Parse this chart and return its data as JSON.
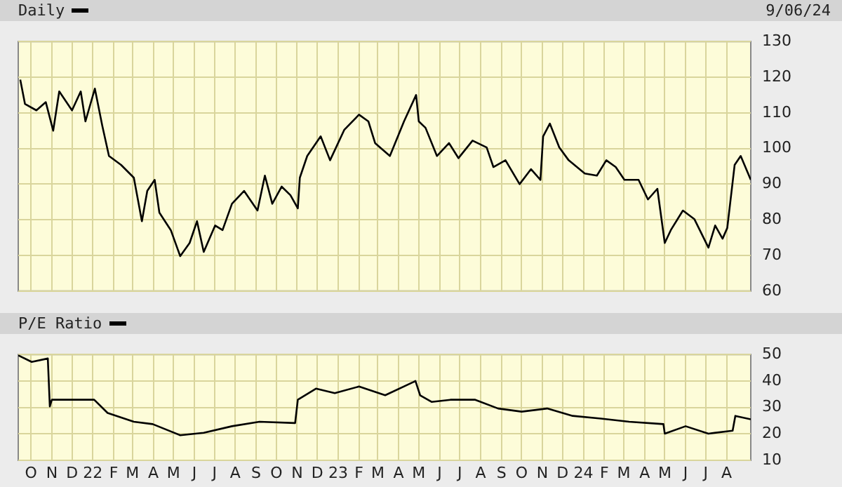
{
  "chart_data": [
    {
      "type": "line",
      "title": "Daily",
      "annotations": [
        "9/06/24"
      ],
      "color": "#000000",
      "grid": true,
      "tick_labels": "y",
      "x": [
        "2021-09-15",
        "2021-09-22",
        "2021-10-09",
        "2021-10-23",
        "2021-11-03",
        "2021-11-12",
        "2021-12-01",
        "2021-12-14",
        "2021-12-21",
        "2022-01-04",
        "2022-01-15",
        "2022-01-25",
        "2022-02-12",
        "2022-03-03",
        "2022-03-09",
        "2022-03-15",
        "2022-03-23",
        "2022-04-03",
        "2022-04-10",
        "2022-04-27",
        "2022-05-11",
        "2022-05-25",
        "2022-06-05",
        "2022-06-15",
        "2022-07-02",
        "2022-07-13",
        "2022-07-27",
        "2022-08-14",
        "2022-09-03",
        "2022-09-14",
        "2022-09-25",
        "2022-10-09",
        "2022-10-22",
        "2022-11-02",
        "2022-11-05",
        "2022-11-16",
        "2022-12-06",
        "2022-12-20",
        "2023-01-10",
        "2023-02-01",
        "2023-02-15",
        "2023-02-25",
        "2023-03-19",
        "2023-04-09",
        "2023-04-27",
        "2023-05-01",
        "2023-05-11",
        "2023-05-28",
        "2023-06-15",
        "2023-06-29",
        "2023-07-20",
        "2023-08-10",
        "2023-08-20",
        "2023-09-07",
        "2023-09-28",
        "2023-10-15",
        "2023-10-29",
        "2023-11-02",
        "2023-11-12",
        "2023-11-26",
        "2023-12-10",
        "2024-01-03",
        "2024-01-21",
        "2024-02-04",
        "2024-02-18",
        "2024-03-02",
        "2024-03-23",
        "2024-04-06",
        "2024-04-20",
        "2024-05-01",
        "2024-05-10",
        "2024-05-28",
        "2024-06-14",
        "2024-07-05",
        "2024-07-15",
        "2024-07-26",
        "2024-08-02",
        "2024-08-13",
        "2024-08-22",
        "2024-09-06"
      ],
      "values": [
        119.3,
        112.5,
        110.7,
        113,
        105,
        116,
        110.7,
        116,
        107.6,
        116.8,
        106.4,
        97.9,
        95.4,
        91.8,
        85.7,
        79.6,
        88.1,
        91.2,
        82,
        77.1,
        69.8,
        73.5,
        79.6,
        71,
        78.4,
        77.1,
        84.5,
        88.1,
        82.6,
        92.4,
        84.5,
        89.3,
        86.9,
        83.2,
        91.8,
        97.9,
        103.4,
        96.7,
        105.2,
        109.5,
        107.6,
        101.5,
        97.9,
        107.6,
        115,
        107.6,
        105.8,
        97.9,
        101.5,
        97.3,
        102.2,
        100.3,
        94.8,
        96.7,
        90,
        94.2,
        91.2,
        103.4,
        107,
        100.3,
        96.7,
        93,
        92.4,
        96.7,
        94.8,
        91.2,
        91.2,
        85.7,
        88.7,
        73.5,
        77.1,
        82.6,
        80.2,
        72.2,
        78.4,
        74.7,
        77.7,
        95.4,
        97.9,
        91.2
      ],
      "xlim": [
        "2021-09-12",
        "2024-09-06"
      ],
      "xticks": [
        {
          "value": "2021-10-01",
          "label": null
        },
        {
          "value": "2021-11-01",
          "label": null
        },
        {
          "value": "2021-12-01",
          "label": null
        },
        {
          "value": "2022-01-01",
          "label": null
        },
        {
          "value": "2022-02-01",
          "label": null
        },
        {
          "value": "2022-03-01",
          "label": null
        },
        {
          "value": "2022-04-01",
          "label": null
        },
        {
          "value": "2022-05-01",
          "label": null
        },
        {
          "value": "2022-06-01",
          "label": null
        },
        {
          "value": "2022-07-01",
          "label": null
        },
        {
          "value": "2022-08-01",
          "label": null
        },
        {
          "value": "2022-09-01",
          "label": null
        },
        {
          "value": "2022-10-01",
          "label": null
        },
        {
          "value": "2022-11-01",
          "label": null
        },
        {
          "value": "2022-12-01",
          "label": null
        },
        {
          "value": "2023-01-01",
          "label": null
        },
        {
          "value": "2023-02-01",
          "label": null
        },
        {
          "value": "2023-03-01",
          "label": null
        },
        {
          "value": "2023-04-01",
          "label": null
        },
        {
          "value": "2023-05-01",
          "label": null
        },
        {
          "value": "2023-06-01",
          "label": null
        },
        {
          "value": "2023-07-01",
          "label": null
        },
        {
          "value": "2023-08-01",
          "label": null
        },
        {
          "value": "2023-09-01",
          "label": null
        },
        {
          "value": "2023-10-01",
          "label": null
        },
        {
          "value": "2023-11-01",
          "label": null
        },
        {
          "value": "2023-12-01",
          "label": null
        },
        {
          "value": "2024-01-01",
          "label": null
        },
        {
          "value": "2024-02-01",
          "label": null
        },
        {
          "value": "2024-03-01",
          "label": null
        },
        {
          "value": "2024-04-01",
          "label": null
        },
        {
          "value": "2024-05-01",
          "label": null
        },
        {
          "value": "2024-06-01",
          "label": null
        },
        {
          "value": "2024-07-01",
          "label": null
        },
        {
          "value": "2024-08-01",
          "label": null
        }
      ],
      "ylim": [
        60,
        130
      ],
      "yticks": [
        60,
        70,
        80,
        90,
        100,
        110,
        120,
        130
      ]
    },
    {
      "type": "line",
      "title": "P/E Ratio",
      "color": "#000000",
      "grid": true,
      "x": [
        "2021-09-12",
        "2021-10-02",
        "2021-10-26",
        "2021-10-29",
        "2021-11-01",
        "2021-12-20",
        "2022-01-03",
        "2022-01-23",
        "2022-03-03",
        "2022-03-31",
        "2022-05-11",
        "2022-06-15",
        "2022-07-27",
        "2022-09-06",
        "2022-10-29",
        "2022-11-02",
        "2022-11-29",
        "2022-12-27",
        "2023-02-01",
        "2023-03-12",
        "2023-04-23",
        "2023-04-26",
        "2023-05-03",
        "2023-05-20",
        "2023-06-17",
        "2023-07-24",
        "2023-08-27",
        "2023-10-01",
        "2023-11-08",
        "2023-12-16",
        "2024-01-27",
        "2024-03-09",
        "2024-04-29",
        "2024-05-01",
        "2024-06-01",
        "2024-07-05",
        "2024-08-10",
        "2024-08-14",
        "2024-09-06"
      ],
      "values": [
        49.7,
        47.2,
        48.5,
        30.4,
        32.9,
        32.9,
        32.9,
        27.9,
        24.6,
        23.7,
        19.5,
        20.4,
        22.9,
        24.6,
        24.1,
        32.9,
        37.1,
        35.4,
        37.9,
        34.6,
        39.6,
        40,
        34.6,
        32.1,
        32.9,
        32.9,
        29.6,
        28.4,
        29.6,
        26.8,
        25.8,
        24.6,
        23.7,
        20.1,
        22.9,
        20.1,
        21.2,
        26.8,
        25.5
      ],
      "xlim": [
        "2021-09-12",
        "2024-09-06"
      ],
      "xticks": [
        {
          "value": "2021-10-01",
          "label": "O"
        },
        {
          "value": "2021-11-01",
          "label": "N"
        },
        {
          "value": "2021-12-01",
          "label": "D"
        },
        {
          "value": "2022-01-01",
          "label": "22"
        },
        {
          "value": "2022-02-01",
          "label": "F"
        },
        {
          "value": "2022-03-01",
          "label": "M"
        },
        {
          "value": "2022-04-01",
          "label": "A"
        },
        {
          "value": "2022-05-01",
          "label": "M"
        },
        {
          "value": "2022-06-01",
          "label": "J"
        },
        {
          "value": "2022-07-01",
          "label": "J"
        },
        {
          "value": "2022-08-01",
          "label": "A"
        },
        {
          "value": "2022-09-01",
          "label": "S"
        },
        {
          "value": "2022-10-01",
          "label": "O"
        },
        {
          "value": "2022-11-01",
          "label": "N"
        },
        {
          "value": "2022-12-01",
          "label": "D"
        },
        {
          "value": "2023-01-01",
          "label": "23"
        },
        {
          "value": "2023-02-01",
          "label": "F"
        },
        {
          "value": "2023-03-01",
          "label": "M"
        },
        {
          "value": "2023-04-01",
          "label": "A"
        },
        {
          "value": "2023-05-01",
          "label": "M"
        },
        {
          "value": "2023-06-01",
          "label": "J"
        },
        {
          "value": "2023-07-01",
          "label": "J"
        },
        {
          "value": "2023-08-01",
          "label": "A"
        },
        {
          "value": "2023-09-01",
          "label": "S"
        },
        {
          "value": "2023-10-01",
          "label": "O"
        },
        {
          "value": "2023-11-01",
          "label": "N"
        },
        {
          "value": "2023-12-01",
          "label": "D"
        },
        {
          "value": "2024-01-01",
          "label": "24"
        },
        {
          "value": "2024-02-01",
          "label": "F"
        },
        {
          "value": "2024-03-01",
          "label": "M"
        },
        {
          "value": "2024-04-01",
          "label": "A"
        },
        {
          "value": "2024-05-01",
          "label": "M"
        },
        {
          "value": "2024-06-01",
          "label": "J"
        },
        {
          "value": "2024-07-01",
          "label": "J"
        },
        {
          "value": "2024-08-01",
          "label": "A"
        }
      ],
      "ylim": [
        10,
        50
      ],
      "yticks": [
        10,
        20,
        30,
        40,
        50
      ]
    }
  ]
}
